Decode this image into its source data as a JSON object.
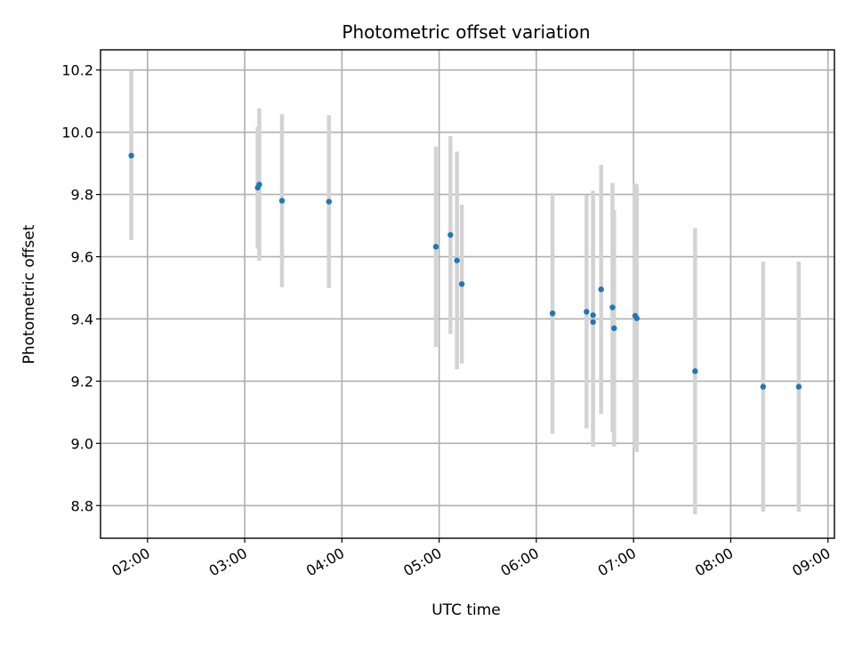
{
  "chart_data": {
    "type": "scatter",
    "title": "Photometric offset variation",
    "xlabel": "UTC time",
    "ylabel": "Photometric offset",
    "xlim": [
      "01:31",
      "09:04"
    ],
    "ylim": [
      8.695,
      10.265
    ],
    "xticks": [
      "02:00",
      "03:00",
      "04:00",
      "05:00",
      "06:00",
      "07:00",
      "08:00",
      "09:00"
    ],
    "yticks": [
      8.8,
      9.0,
      9.2,
      9.4,
      9.6,
      9.8,
      10.0,
      10.2
    ],
    "ytick_labels": [
      "8.8",
      "9.0",
      "9.2",
      "9.4",
      "9.6",
      "9.8",
      "10.0",
      "10.2"
    ],
    "grid": true,
    "point_color": "#1f77b4",
    "errorbar_color": "#d3d3d3",
    "points": [
      {
        "time": "01:50",
        "y": 9.925,
        "err": 0.272
      },
      {
        "time": "03:08",
        "y": 9.822,
        "err": 0.196
      },
      {
        "time": "03:09",
        "y": 9.832,
        "err": 0.245
      },
      {
        "time": "03:23",
        "y": 9.78,
        "err": 0.278
      },
      {
        "time": "03:52",
        "y": 9.777,
        "err": 0.278
      },
      {
        "time": "04:58",
        "y": 9.632,
        "err": 0.322
      },
      {
        "time": "05:07",
        "y": 9.67,
        "err": 0.318
      },
      {
        "time": "05:11",
        "y": 9.588,
        "err": 0.35
      },
      {
        "time": "05:14",
        "y": 9.512,
        "err": 0.255
      },
      {
        "time": "06:10",
        "y": 9.418,
        "err": 0.387
      },
      {
        "time": "06:31",
        "y": 9.423,
        "err": 0.375
      },
      {
        "time": "06:35",
        "y": 9.39,
        "err": 0.4
      },
      {
        "time": "06:35",
        "y": 9.412,
        "err": 0.4
      },
      {
        "time": "06:40",
        "y": 9.495,
        "err": 0.4
      },
      {
        "time": "06:47",
        "y": 9.437,
        "err": 0.4
      },
      {
        "time": "06:48",
        "y": 9.37,
        "err": 0.38
      },
      {
        "time": "07:01",
        "y": 9.41,
        "err": 0.425
      },
      {
        "time": "07:02",
        "y": 9.402,
        "err": 0.43
      },
      {
        "time": "07:38",
        "y": 9.232,
        "err": 0.46
      },
      {
        "time": "08:20",
        "y": 9.182,
        "err": 0.402
      },
      {
        "time": "08:42",
        "y": 9.182,
        "err": 0.402
      }
    ]
  }
}
